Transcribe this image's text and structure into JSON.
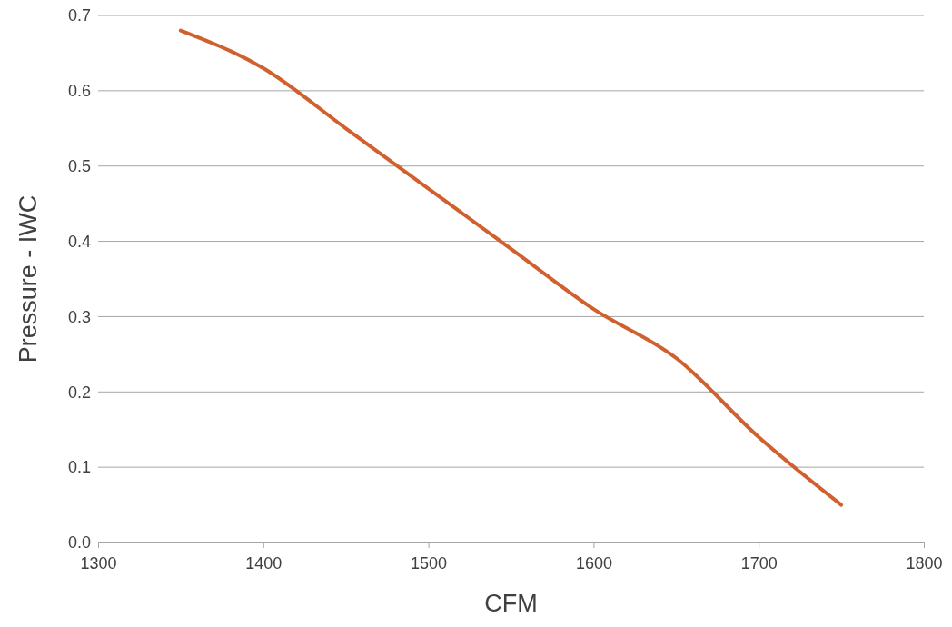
{
  "chart_data": {
    "type": "line",
    "xlabel": "CFM",
    "ylabel": "Pressure - IWC",
    "x": [
      1350,
      1400,
      1450,
      1500,
      1550,
      1600,
      1650,
      1700,
      1750
    ],
    "series": [
      {
        "color": "#d0612e",
        "values": [
          0.68,
          0.63,
          0.55,
          0.47,
          0.39,
          0.31,
          0.245,
          0.14,
          0.05
        ]
      }
    ],
    "xlim": [
      1300,
      1800
    ],
    "xticks": [
      1300,
      1400,
      1500,
      1600,
      1700,
      1800
    ],
    "ylim": [
      0,
      0.7
    ],
    "yticks": [
      {
        "value": 0,
        "label": "0.0"
      },
      {
        "value": 0.1,
        "label": "0.1"
      },
      {
        "value": 0.2,
        "label": "0.2"
      },
      {
        "value": 0.3,
        "label": "0.3"
      },
      {
        "value": 0.4,
        "label": "0.4"
      },
      {
        "value": 0.5,
        "label": "0.5"
      },
      {
        "value": 0.6,
        "label": "0.6"
      },
      {
        "value": 0.7,
        "label": "0.7"
      }
    ],
    "grid": "y",
    "marker": "none",
    "line_style": "solid"
  }
}
